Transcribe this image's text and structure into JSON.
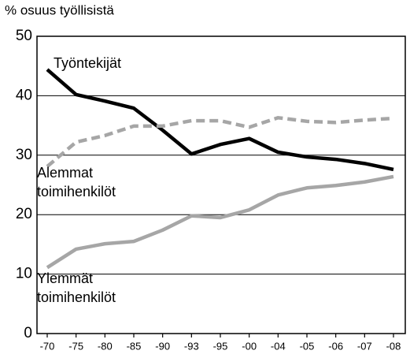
{
  "chart_data": {
    "type": "line",
    "y_label": "% osuus työllisistä",
    "categories": [
      "-70",
      "-75",
      "-80",
      "-85",
      "-90",
      "-93",
      "-95",
      "-00",
      "-04",
      "-05",
      "-06",
      "-07",
      "-08"
    ],
    "series": [
      {
        "name": "Työntekijät",
        "color": "#000000",
        "dashed": false,
        "values": [
          44.4,
          40.2,
          39.1,
          37.9,
          34.2,
          30.2,
          31.8,
          32.8,
          30.5,
          29.7,
          29.3,
          28.6,
          27.6
        ]
      },
      {
        "name": "Alemmat toimihenkilöt",
        "color": "#a6a6a6",
        "dashed": true,
        "values": [
          28.1,
          32.2,
          33.3,
          34.9,
          34.9,
          35.8,
          35.8,
          34.7,
          36.3,
          35.7,
          35.5,
          35.9,
          36.2
        ]
      },
      {
        "name": "Ylemmät toimihenkilöt",
        "color": "#a6a6a6",
        "dashed": false,
        "values": [
          11.1,
          14.2,
          15.1,
          15.5,
          17.4,
          19.8,
          19.5,
          20.8,
          23.3,
          24.5,
          24.9,
          25.5,
          26.4
        ]
      }
    ],
    "ylim": [
      0,
      50
    ],
    "yticks": [
      0,
      10,
      20,
      30,
      40,
      50
    ],
    "grid": true
  }
}
